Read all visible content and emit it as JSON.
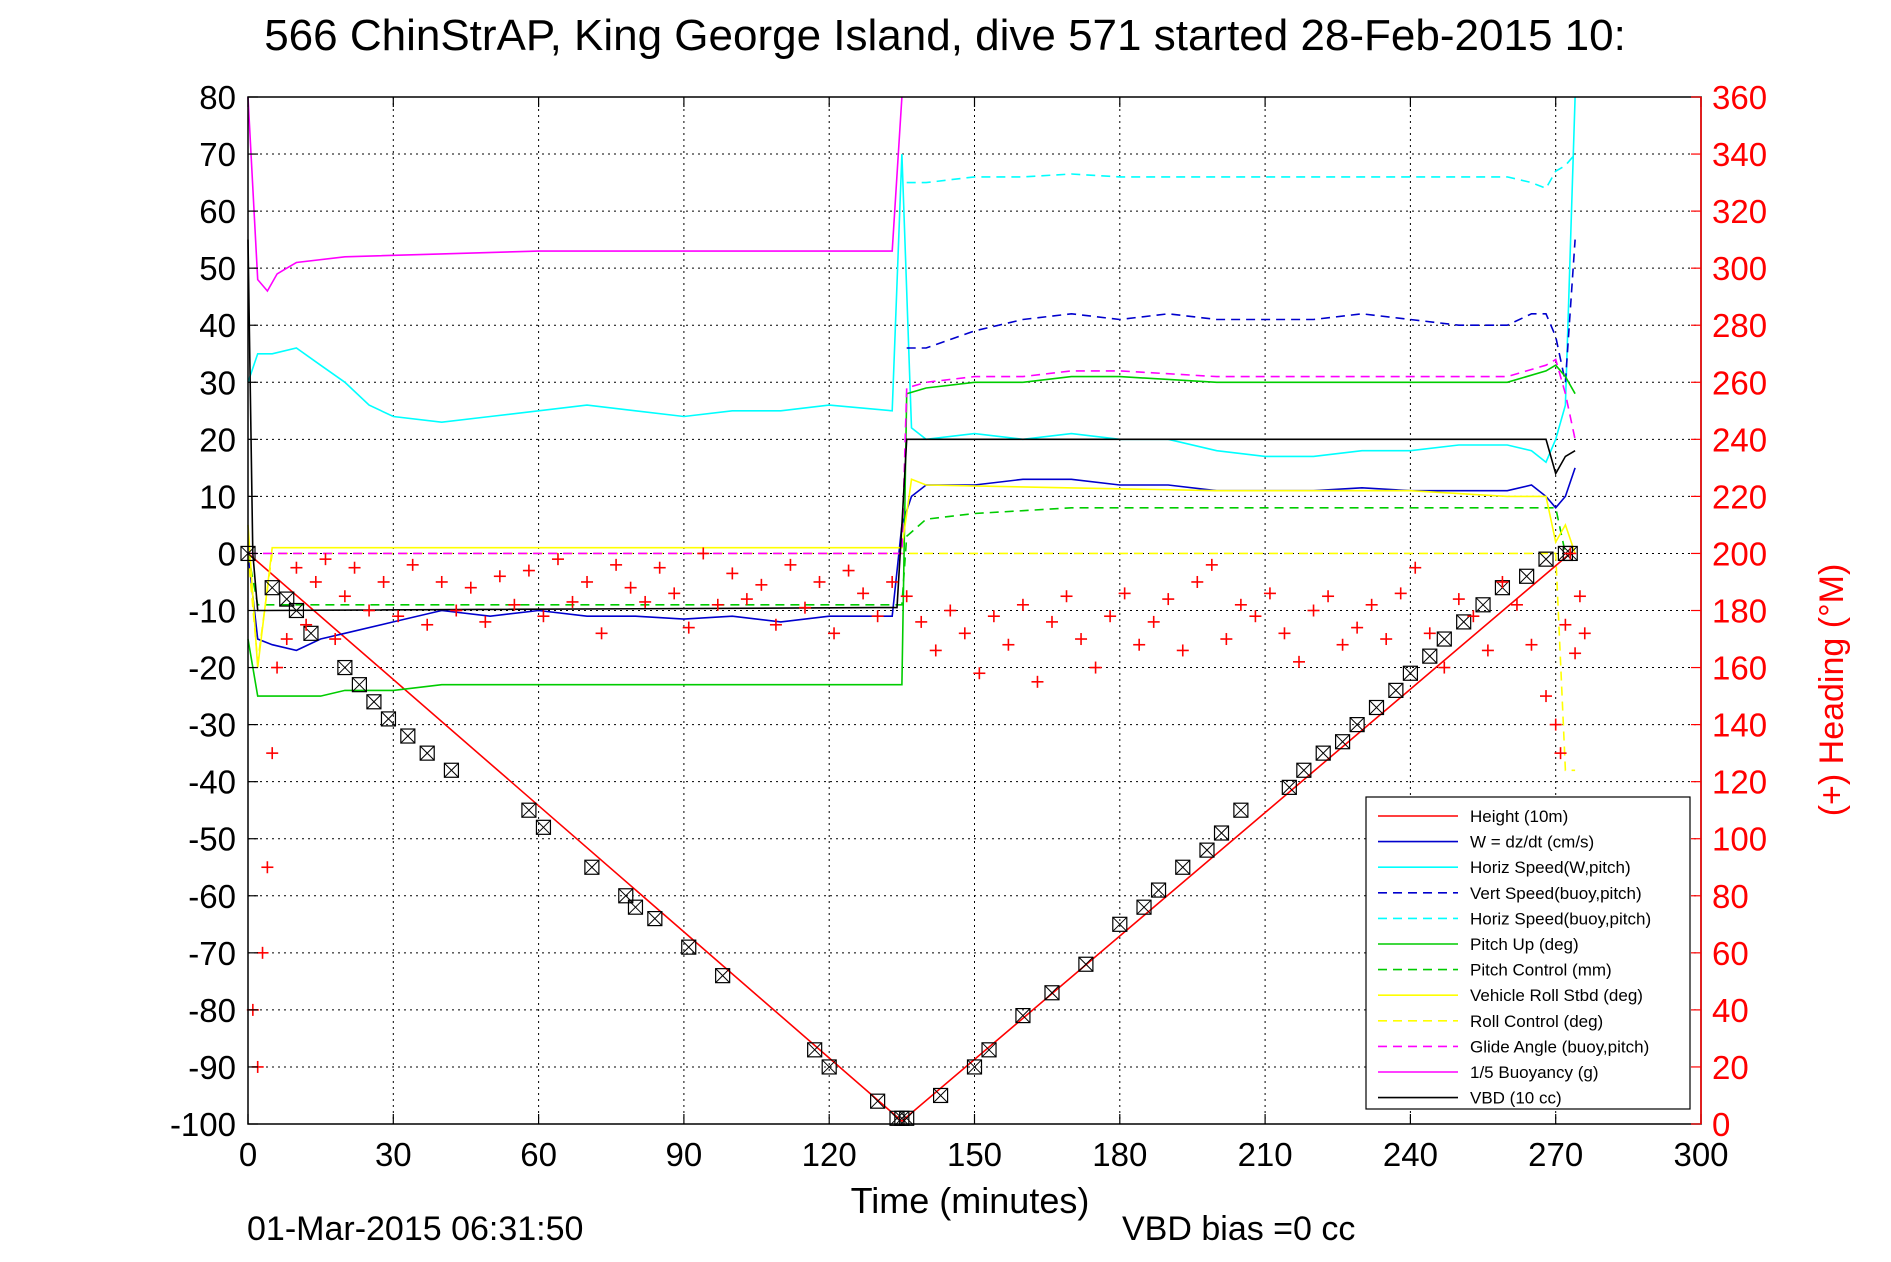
{
  "chart_data": {
    "type": "line",
    "title": "566 ChinStrAP, King George Island, dive 571 started 28-Feb-2015 10:",
    "xlabel": "Time (minutes)",
    "ylabel": "",
    "y2label": "(+) Heading (°M)",
    "xlim": [
      0,
      300
    ],
    "ylim": [
      -100,
      80
    ],
    "y2lim": [
      0,
      360
    ],
    "x_ticks": [
      "0",
      "30",
      "60",
      "90",
      "120",
      "150",
      "180",
      "210",
      "240",
      "270",
      "300"
    ],
    "y_ticks": [
      "80",
      "70",
      "60",
      "50",
      "40",
      "30",
      "20",
      "10",
      "0",
      "-10",
      "-20",
      "-30",
      "-40",
      "-50",
      "-60",
      "-70",
      "-80",
      "-90",
      "-100"
    ],
    "y2_ticks": [
      "360",
      "340",
      "320",
      "300",
      "280",
      "260",
      "240",
      "220",
      "200",
      "180",
      "160",
      "140",
      "120",
      "100",
      "80",
      "60",
      "40",
      "20",
      "0"
    ],
    "grid": true,
    "legend_position": "lower-right",
    "footer_left": "01-Mar-2015 06:31:50",
    "footer_right": "VBD bias =0 cc",
    "series": [
      {
        "name": "Height (10m)",
        "color": "#ff0000",
        "style": "solid",
        "x": [
          0,
          135,
          273
        ],
        "values": [
          0,
          -99.5,
          0
        ]
      },
      {
        "name": "W = dz/dt (cm/s)",
        "color": "#0000cd",
        "style": "solid",
        "x": [
          0,
          2,
          5,
          10,
          15,
          20,
          30,
          40,
          50,
          60,
          70,
          80,
          90,
          100,
          110,
          120,
          133,
          135,
          137,
          140,
          150,
          160,
          170,
          180,
          190,
          200,
          210,
          220,
          230,
          240,
          250,
          260,
          265,
          268,
          270,
          272,
          274
        ],
        "values": [
          0,
          -15,
          -16,
          -17,
          -15,
          -14,
          -12,
          -10,
          -11,
          -10,
          -11,
          -11,
          -11.5,
          -11,
          -12,
          -11,
          -11,
          5,
          10,
          12,
          12,
          13,
          13,
          12,
          12,
          11,
          11,
          11,
          11.5,
          11,
          11,
          11,
          12,
          10,
          8,
          10,
          15
        ]
      },
      {
        "name": "Horiz Speed(W,pitch)",
        "color": "#00ffff",
        "style": "solid",
        "x": [
          0,
          2,
          5,
          10,
          15,
          20,
          25,
          30,
          40,
          50,
          60,
          70,
          80,
          90,
          100,
          110,
          120,
          133,
          135,
          137,
          140,
          150,
          160,
          170,
          180,
          190,
          200,
          210,
          220,
          230,
          240,
          250,
          260,
          265,
          268,
          270,
          272,
          274
        ],
        "values": [
          30,
          35,
          35,
          36,
          33,
          30,
          26,
          24,
          23,
          24,
          25,
          26,
          25,
          24,
          25,
          25,
          26,
          25,
          70,
          22,
          20,
          21,
          20,
          21,
          20,
          20,
          18,
          17,
          17,
          18,
          18,
          19,
          19,
          18,
          16,
          20,
          26,
          80
        ]
      },
      {
        "name": "Vert Speed(buoy,pitch)",
        "color": "#0000cd",
        "style": "dashed",
        "x": [
          136,
          140,
          150,
          160,
          170,
          180,
          190,
          200,
          210,
          220,
          230,
          240,
          250,
          260,
          265,
          268,
          270,
          272,
          274
        ],
        "values": [
          36,
          36,
          39,
          41,
          42,
          41,
          42,
          41,
          41,
          41,
          42,
          41,
          40,
          40,
          42,
          42,
          38,
          30,
          55
        ]
      },
      {
        "name": "Horiz Speed(buoy,pitch)",
        "color": "#00ffff",
        "style": "dashed",
        "x": [
          136,
          140,
          150,
          160,
          170,
          180,
          190,
          200,
          210,
          220,
          230,
          240,
          250,
          260,
          265,
          268,
          270,
          272,
          274
        ],
        "values": [
          65,
          65,
          66,
          66,
          66.5,
          66,
          66,
          66,
          66,
          66,
          66,
          66,
          66,
          66,
          65,
          64,
          67,
          68,
          70
        ]
      },
      {
        "name": "Pitch Up (deg)",
        "color": "#00cc00",
        "style": "solid",
        "x": [
          0,
          2,
          5,
          10,
          15,
          20,
          30,
          40,
          60,
          80,
          100,
          120,
          133,
          135,
          136,
          140,
          150,
          160,
          170,
          180,
          200,
          220,
          240,
          260,
          268,
          270,
          272,
          274
        ],
        "values": [
          -15,
          -25,
          -25,
          -25,
          -25,
          -24,
          -24,
          -23,
          -23,
          -23,
          -23,
          -23,
          -23,
          -23,
          28,
          29,
          30,
          30,
          31,
          31,
          30,
          30,
          30,
          30,
          32,
          33,
          31,
          28
        ]
      },
      {
        "name": "Pitch Control (mm)",
        "color": "#00cc00",
        "style": "dashed",
        "x": [
          0,
          2,
          5,
          130,
          135,
          136,
          140,
          150,
          160,
          170,
          180,
          200,
          220,
          240,
          260,
          270,
          272
        ],
        "values": [
          0,
          -9,
          -9,
          -9,
          -9,
          3,
          6,
          7,
          7.5,
          8,
          8,
          8,
          8,
          8,
          8,
          8,
          0
        ]
      },
      {
        "name": "Vehicle Roll Stbd (deg)",
        "color": "#ffff00",
        "style": "solid",
        "x": [
          0,
          2,
          5,
          10,
          50,
          100,
          130,
          135,
          137,
          140,
          200,
          240,
          260,
          268,
          270,
          272,
          274
        ],
        "values": [
          5,
          -20,
          1,
          1,
          1,
          1,
          1,
          1,
          13,
          12,
          11,
          11,
          10,
          10,
          2,
          5,
          0
        ]
      },
      {
        "name": "Roll Control (deg)",
        "color": "#ffff00",
        "style": "dashed",
        "x": [
          0,
          2,
          5,
          130,
          135,
          136,
          200,
          240,
          270,
          272,
          274
        ],
        "values": [
          0,
          -19,
          0,
          0,
          0,
          0,
          0,
          0,
          0,
          -38,
          -38
        ]
      },
      {
        "name": "Glide Angle (buoy,pitch)",
        "color": "#ff00ff",
        "style": "dashed",
        "x": [
          0,
          2,
          5,
          130,
          135,
          136,
          140,
          150,
          160,
          170,
          180,
          200,
          220,
          240,
          260,
          268,
          270,
          272,
          274
        ],
        "values": [
          0,
          0,
          0,
          0,
          0,
          29,
          30,
          31,
          31,
          32,
          32,
          31,
          31,
          31,
          31,
          33,
          34,
          28,
          20
        ]
      },
      {
        "name": "1/5 Buoyancy (g)",
        "color": "#ff00ff",
        "style": "solid",
        "x": [
          0,
          2,
          4,
          6,
          8,
          10,
          20,
          40,
          60,
          80,
          100,
          120,
          133,
          135
        ],
        "values": [
          80,
          48,
          46,
          49,
          50,
          51,
          52,
          52.5,
          53,
          53,
          53,
          53,
          53,
          80
        ]
      },
      {
        "name": "VBD (10 cc)",
        "color": "#000000",
        "style": "solid",
        "x": [
          0,
          1,
          2,
          3,
          130,
          134,
          135,
          136,
          140,
          150,
          160,
          170,
          180,
          200,
          210,
          220,
          240,
          260,
          268,
          270,
          272,
          274
        ],
        "values": [
          55,
          0,
          -10,
          -10,
          -9.5,
          -9.5,
          5,
          20,
          20,
          20,
          20,
          20,
          20,
          20,
          20,
          20,
          20,
          20,
          20,
          14,
          17,
          18
        ]
      },
      {
        "name": "(+) Heading (°M)",
        "axis": "right",
        "color": "#ff0000",
        "style": "markers-plus",
        "x": [
          1,
          2,
          3,
          4,
          5,
          6,
          8,
          10,
          12,
          14,
          16,
          18,
          20,
          22,
          25,
          28,
          31,
          34,
          37,
          40,
          43,
          46,
          49,
          52,
          55,
          58,
          61,
          64,
          67,
          70,
          73,
          76,
          79,
          82,
          85,
          88,
          91,
          94,
          97,
          100,
          103,
          106,
          109,
          112,
          115,
          118,
          121,
          124,
          127,
          130,
          133,
          136,
          139,
          142,
          145,
          148,
          151,
          154,
          157,
          160,
          163,
          166,
          169,
          172,
          175,
          178,
          181,
          184,
          187,
          190,
          193,
          196,
          199,
          202,
          205,
          208,
          211,
          214,
          217,
          220,
          223,
          226,
          229,
          232,
          235,
          238,
          241,
          244,
          247,
          250,
          253,
          256,
          259,
          262,
          265,
          268,
          270,
          271,
          272,
          273,
          274,
          275,
          276
        ],
        "values": [
          40,
          20,
          60,
          90,
          130,
          160,
          170,
          195,
          175,
          190,
          198,
          170,
          185,
          195,
          180,
          190,
          178,
          196,
          175,
          190,
          180,
          188,
          176,
          192,
          182,
          194,
          178,
          198,
          183,
          190,
          172,
          196,
          188,
          183,
          195,
          186,
          174,
          200,
          182,
          193,
          184,
          189,
          175,
          196,
          181,
          190,
          172,
          194,
          186,
          178,
          190,
          185,
          176,
          166,
          180,
          172,
          158,
          178,
          168,
          182,
          155,
          176,
          185,
          170,
          160,
          178,
          186,
          168,
          176,
          184,
          166,
          190,
          196,
          170,
          182,
          178,
          186,
          172,
          162,
          180,
          185,
          168,
          174,
          182,
          170,
          186,
          195,
          172,
          160,
          184,
          178,
          166,
          190,
          182,
          168,
          150,
          140,
          130,
          175,
          200,
          165,
          185,
          172
        ]
      }
    ],
    "depth_markers": {
      "x": [
        0,
        5,
        8,
        10,
        13,
        20,
        23,
        26,
        29,
        33,
        37,
        42,
        58,
        61,
        71,
        78,
        80,
        84,
        91,
        98,
        117,
        120,
        130,
        134,
        135,
        136,
        143,
        150,
        153,
        160,
        166,
        173,
        180,
        185,
        188,
        193,
        198,
        201,
        205,
        215,
        218,
        222,
        226,
        229,
        233,
        237,
        240,
        244,
        247,
        251,
        255,
        259,
        264,
        268,
        272,
        273
      ],
      "values": [
        0,
        -6,
        -8,
        -10,
        -14,
        -20,
        -23,
        -26,
        -29,
        -32,
        -35,
        -38,
        -45,
        -48,
        -55,
        -60,
        -62,
        -64,
        -69,
        -74,
        -87,
        -90,
        -96,
        -99,
        -99,
        -99,
        -95,
        -90,
        -87,
        -81,
        -77,
        -72,
        -65,
        -62,
        -59,
        -55,
        -52,
        -49,
        -45,
        -41,
        -38,
        -35,
        -33,
        -30,
        -27,
        -24,
        -21,
        -18,
        -15,
        -12,
        -9,
        -6,
        -4,
        -1,
        0,
        0
      ]
    }
  }
}
